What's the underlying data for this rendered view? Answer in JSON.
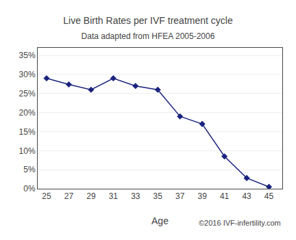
{
  "chart_data": {
    "type": "line",
    "title": "Live Birth Rates per IVF treatment cycle",
    "subtitle": "Data adapted from HFEA 2005-2006",
    "xlabel": "Age",
    "annotations": [
      "©2016 IVF-infertility.com"
    ],
    "x": [
      25,
      27,
      29,
      31,
      33,
      35,
      37,
      39,
      41,
      43,
      45
    ],
    "values": [
      0.29,
      0.274,
      0.26,
      0.29,
      0.27,
      0.26,
      0.19,
      0.17,
      0.085,
      0.028,
      0.005
    ],
    "color": "#1a237e",
    "marker": "diamond",
    "xlim": [
      24.2,
      46.2
    ],
    "xticks": [
      25,
      27,
      29,
      31,
      33,
      35,
      37,
      39,
      41,
      43,
      45
    ],
    "ylim": [
      0,
      0.37
    ],
    "yticks": [
      {
        "value": 0,
        "label": "0%"
      },
      {
        "value": 0.05,
        "label": "5%"
      },
      {
        "value": 0.1,
        "label": "10%"
      },
      {
        "value": 0.15,
        "label": "15%"
      },
      {
        "value": 0.2,
        "label": "20%"
      },
      {
        "value": 0.25,
        "label": "25%"
      },
      {
        "value": 0.3,
        "label": "30%"
      },
      {
        "value": 0.35,
        "label": "35%"
      }
    ],
    "grid": "y"
  }
}
